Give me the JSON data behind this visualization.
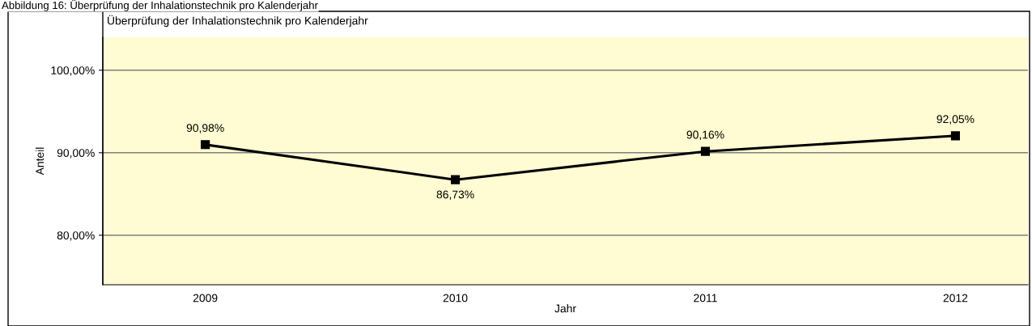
{
  "chart_data": {
    "type": "line",
    "title": "Überprüfung der Inhalationstechnik pro Kalenderjahr",
    "annotations": [
      "Abbildung 16: Überprüfung der Inhalationstechnik pro Kalenderjahr"
    ],
    "xlabel": "Jahr",
    "ylabel": "Anteil",
    "categories": [
      "2009",
      "2010",
      "2011",
      "2012"
    ],
    "series": [
      {
        "color": "#000000",
        "values": [
          90.98,
          86.73,
          90.16,
          92.05
        ]
      }
    ],
    "value_labels": [
      "90,98%",
      "86,73%",
      "90,16%",
      "92,05%"
    ],
    "ylim": [
      74,
      104
    ],
    "yticks": [
      {
        "value": 80,
        "label": "80,00%"
      },
      {
        "value": 90,
        "label": "90,00%"
      },
      {
        "value": 100,
        "label": "100,00%"
      }
    ],
    "grid": "y",
    "marker": "square",
    "line_style": "solid",
    "legend": false
  }
}
